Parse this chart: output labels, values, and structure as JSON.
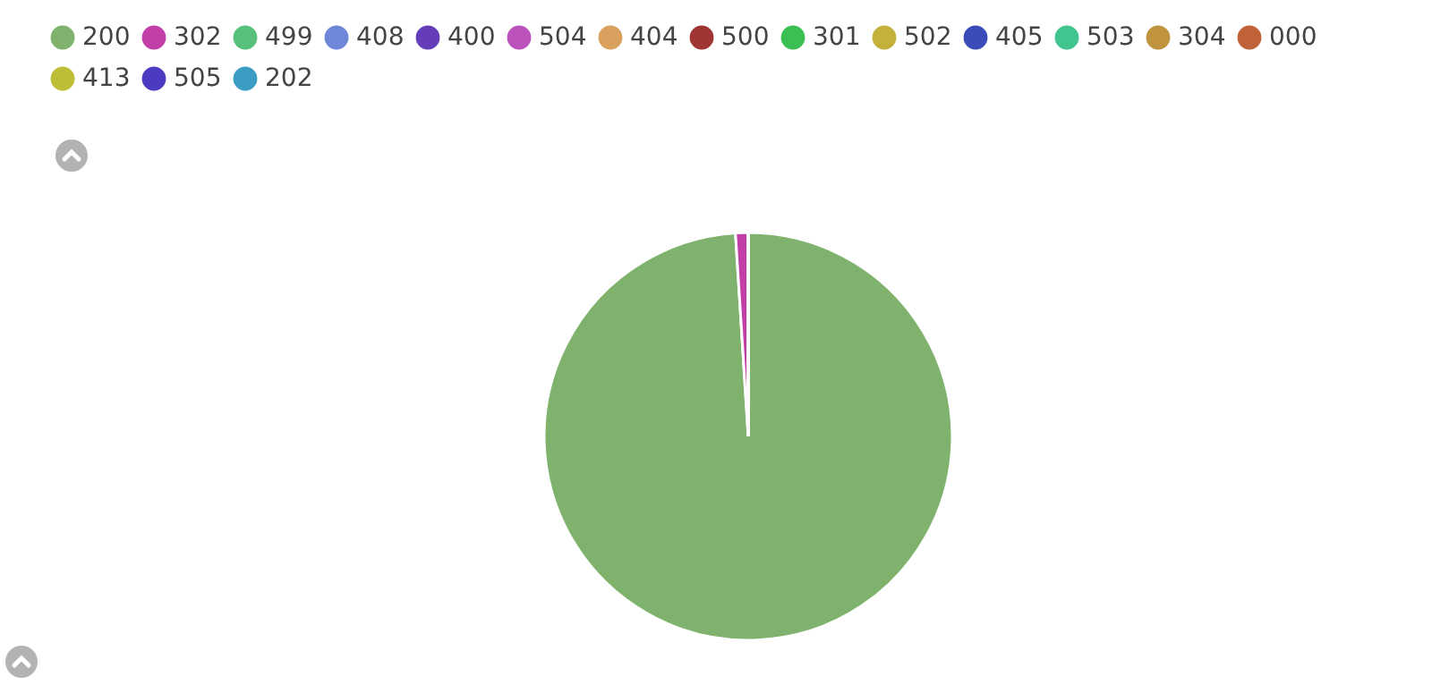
{
  "chart_data": {
    "type": "pie",
    "legend": "top left",
    "categories": [
      "200",
      "302",
      "499",
      "408",
      "400",
      "504",
      "404",
      "500",
      "301",
      "502",
      "405",
      "503",
      "304",
      "000",
      "413",
      "505",
      "202"
    ],
    "values": [
      99.0,
      1.0,
      0,
      0,
      0,
      0,
      0,
      0,
      0,
      0,
      0,
      0,
      0,
      0,
      0,
      0,
      0
    ],
    "colors": [
      "#7eb26d",
      "#c13fa6",
      "#57c17b",
      "#6f87d8",
      "#663db8",
      "#bc52bc",
      "#daa05d",
      "#9e3533",
      "#3cbf52",
      "#c4b13c",
      "#3b4cb8",
      "#41c48e",
      "#c0943c",
      "#c0623a",
      "#bdbd36",
      "#4a3bc0",
      "#3b9cc4"
    ]
  }
}
